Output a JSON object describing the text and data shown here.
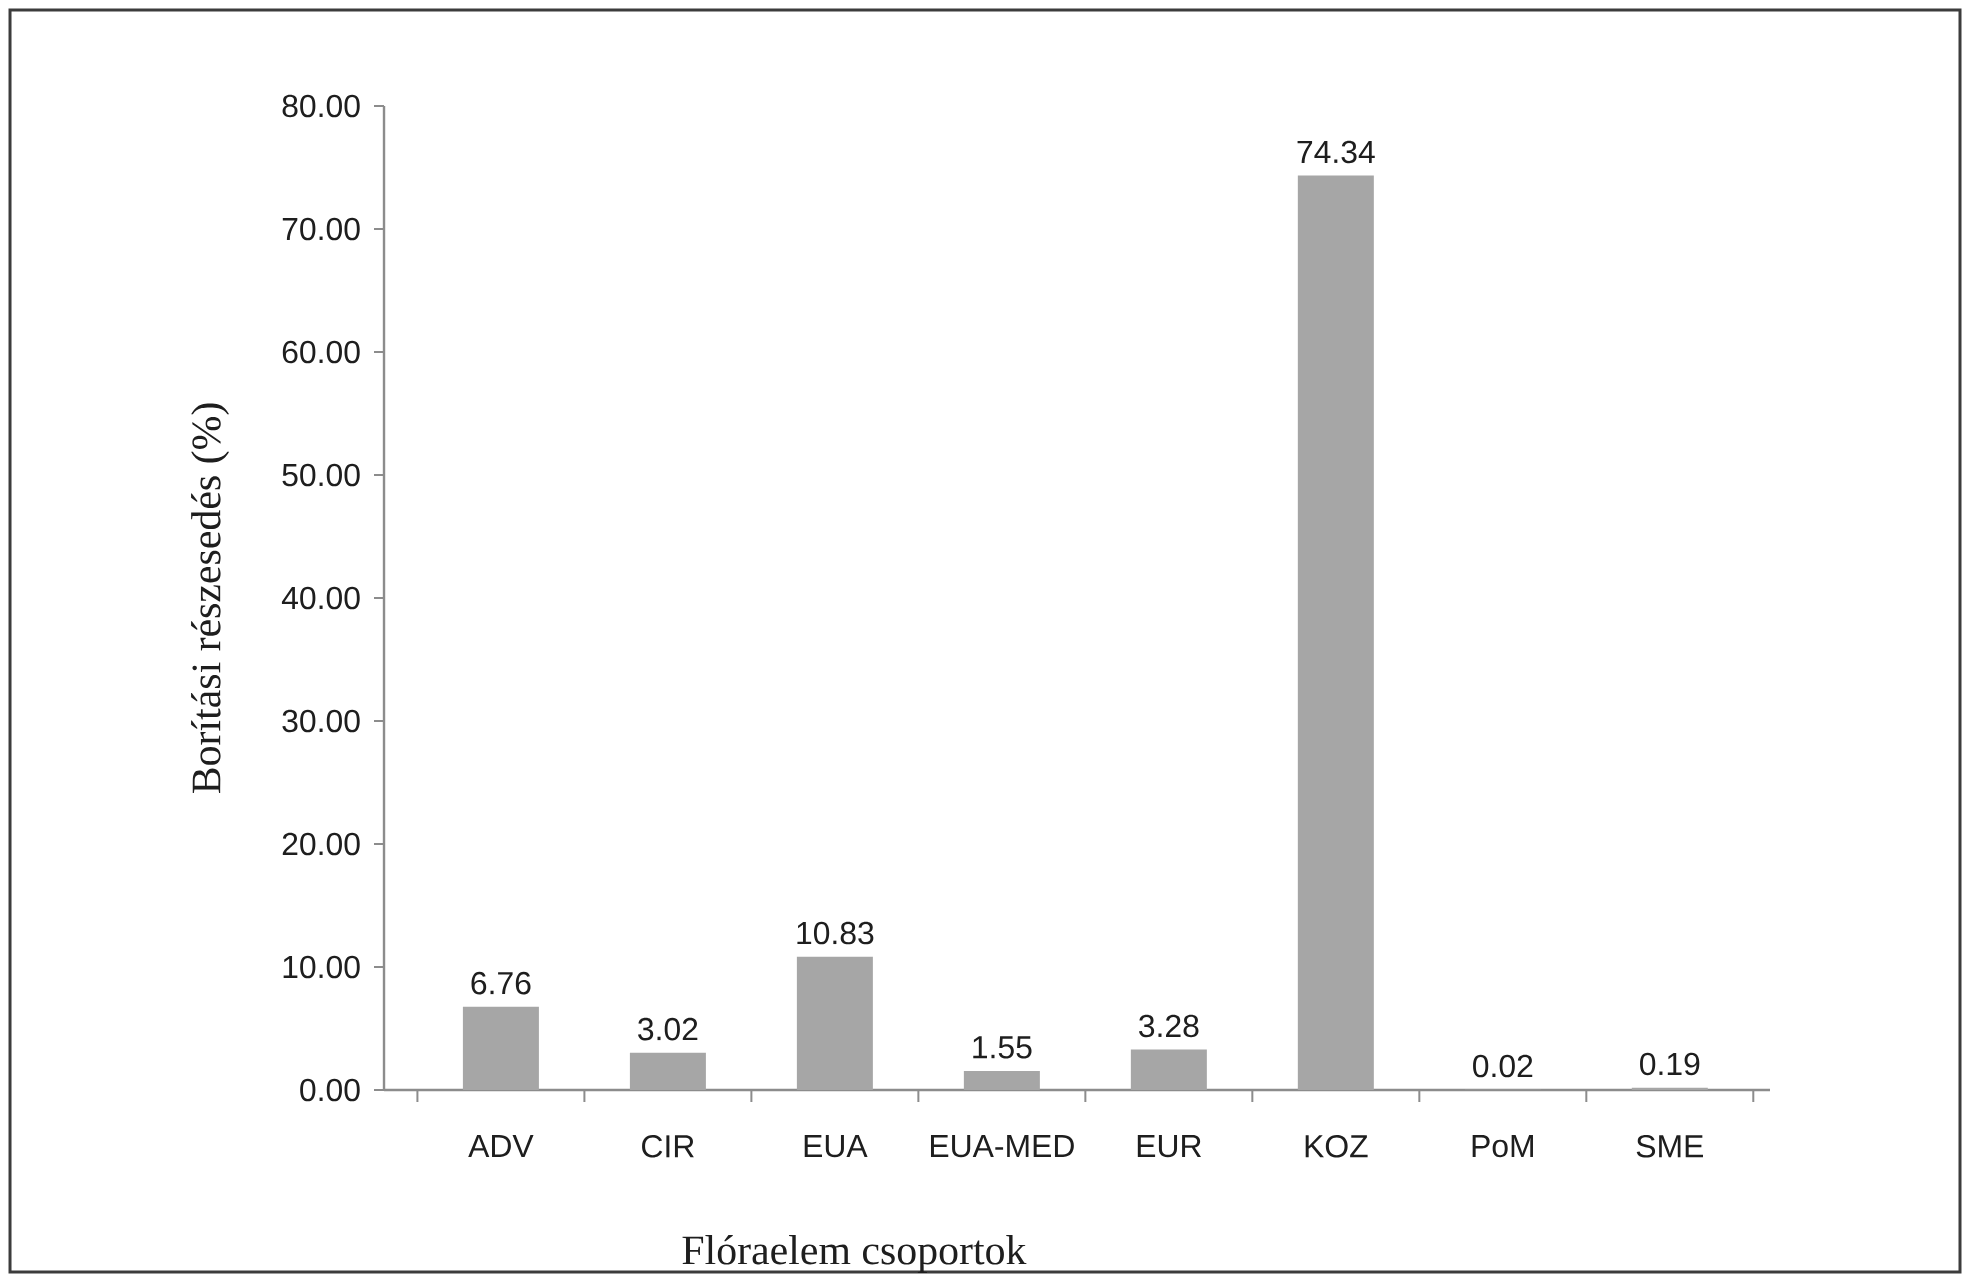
{
  "chart_data": {
    "type": "bar",
    "xlabel": "Flóraelem csoportok",
    "ylabel": "Borítási részesedés (%)",
    "categories": [
      "ADV",
      "CIR",
      "EUA",
      "EUA-MED",
      "EUR",
      "KOZ",
      "PoM",
      "SME"
    ],
    "values": [
      6.76,
      3.02,
      10.83,
      1.55,
      3.28,
      74.34,
      0.02,
      0.19
    ],
    "value_labels": [
      "6.76",
      "3.02",
      "10.83",
      "1.55",
      "3.28",
      "74.34",
      "0.02",
      "0.19"
    ],
    "color": "#a6a6a6",
    "ylim": [
      0,
      80
    ],
    "yticks": [
      {
        "value": 0,
        "label": "0.00"
      },
      {
        "value": 10,
        "label": "10.00"
      },
      {
        "value": 20,
        "label": "20.00"
      },
      {
        "value": 30,
        "label": "30.00"
      },
      {
        "value": 40,
        "label": "40.00"
      },
      {
        "value": 50,
        "label": "50.00"
      },
      {
        "value": 60,
        "label": "60.00"
      },
      {
        "value": 70,
        "label": "70.00"
      },
      {
        "value": 80,
        "label": "80.00"
      }
    ],
    "grid": false
  }
}
